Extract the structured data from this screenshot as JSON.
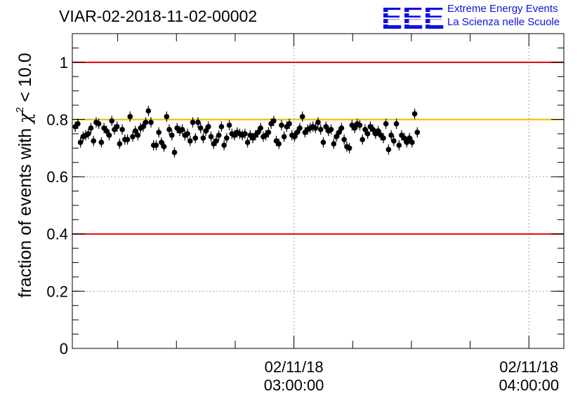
{
  "header": {
    "title": "VIAR-02-2018-11-02-00002",
    "logo_letters": "EEE",
    "logo_line1": "Extreme Energy Events",
    "logo_line2": "La Scienza nelle Scuole"
  },
  "colors": {
    "reference_line": "#e00000",
    "mean_line": "#f0b400",
    "points": "#000000",
    "logo": "#1010e0"
  },
  "chart_data": {
    "type": "scatter",
    "title": "VIAR-02-2018-11-02-00002",
    "xlabel": "",
    "ylabel_prefix": "fraction of events with ",
    "ylabel_symbol": "χ",
    "ylabel_power": "2",
    "ylabel_suffix": " < 10.0",
    "ylim": [
      0,
      1.1
    ],
    "xlim": [
      "02/11/18 02:03:25",
      "02/11/18 04:08:55"
    ],
    "y_ticks": [
      {
        "value": 0,
        "label": "0"
      },
      {
        "value": 0.2,
        "label": "0.2"
      },
      {
        "value": 0.4,
        "label": "0.4"
      },
      {
        "value": 0.6,
        "label": "0.6"
      },
      {
        "value": 0.8,
        "label": "0.8"
      },
      {
        "value": 1,
        "label": "1"
      }
    ],
    "x_tick_labels": [
      {
        "time": "02/11/18 03:00:00",
        "date": "02/11/18",
        "clock": "03:00:00"
      },
      {
        "time": "02/11/18 04:00:00",
        "date": "02/11/18",
        "clock": "04:00:00"
      }
    ],
    "reference_lines": [
      {
        "value": 1.0,
        "color": "#e00000"
      },
      {
        "value": 0.4,
        "color": "#e00000"
      },
      {
        "value": 0.8,
        "color": "#f0b400"
      }
    ],
    "grid": "dotted, y at 0.2–1.0, x at labelled times",
    "series": [
      {
        "x_start": "02/11/18 02:04:10",
        "x_step_seconds": 40,
        "error": 0.018,
        "values": [
          0.775,
          0.785,
          0.72,
          0.74,
          0.745,
          0.75,
          0.77,
          0.725,
          0.79,
          0.785,
          0.72,
          0.77,
          0.76,
          0.745,
          0.795,
          0.765,
          0.775,
          0.715,
          0.765,
          0.73,
          0.73,
          0.81,
          0.74,
          0.76,
          0.745,
          0.77,
          0.775,
          0.79,
          0.83,
          0.79,
          0.71,
          0.71,
          0.755,
          0.72,
          0.705,
          0.81,
          0.765,
          0.745,
          0.685,
          0.77,
          0.76,
          0.765,
          0.745,
          0.75,
          0.725,
          0.79,
          0.735,
          0.79,
          0.77,
          0.735,
          0.76,
          0.775,
          0.74,
          0.715,
          0.725,
          0.745,
          0.775,
          0.71,
          0.735,
          0.78,
          0.75,
          0.745,
          0.755,
          0.75,
          0.745,
          0.75,
          0.72,
          0.745,
          0.735,
          0.745,
          0.755,
          0.77,
          0.74,
          0.745,
          0.755,
          0.785,
          0.795,
          0.725,
          0.715,
          0.78,
          0.74,
          0.775,
          0.785,
          0.745,
          0.74,
          0.755,
          0.77,
          0.81,
          0.755,
          0.765,
          0.77,
          0.775,
          0.77,
          0.79,
          0.765,
          0.72,
          0.775,
          0.76,
          0.765,
          0.715,
          0.74,
          0.755,
          0.77,
          0.73,
          0.705,
          0.7,
          0.78,
          0.77,
          0.785,
          0.78,
          0.73,
          0.765,
          0.75,
          0.775,
          0.765,
          0.75,
          0.76,
          0.745,
          0.735,
          0.785,
          0.695,
          0.745,
          0.725,
          0.785,
          0.71,
          0.745,
          0.735,
          0.72,
          0.735,
          0.72,
          0.82,
          0.755
        ]
      }
    ]
  }
}
